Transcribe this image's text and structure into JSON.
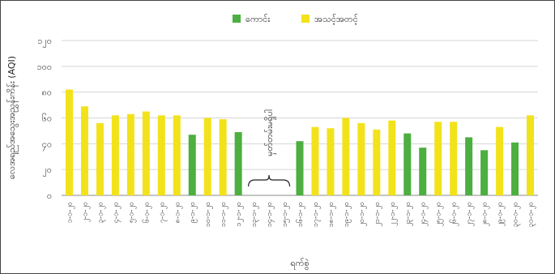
{
  "chart_data": {
    "type": "bar",
    "title": "",
    "ylabel": "လေအရည်အသွေးအညွှန်းကိန်း (AQI)",
    "xlabel": "ရက်စွဲ",
    "ylim": [
      0,
      120
    ],
    "yticks": [
      0,
      20,
      40,
      60,
      80,
      100,
      120
    ],
    "ytick_labels": [
      "၀",
      "၂၀",
      "၄၀",
      "၆၀",
      "၈၀",
      "၁၀၀",
      "၁၂၀"
    ],
    "legend_position": "top-center",
    "legend": [
      {
        "key": "good",
        "label": "ကောင်း",
        "color": "#4caf3f"
      },
      {
        "key": "moderate",
        "label": "အသင့်အတင့်",
        "color": "#f2e21b"
      }
    ],
    "annotation": "မှတ်တမ်းမရှိပါ",
    "categories": [
      "၁-၁-၂၀",
      "၂-၁-၂၀",
      "၃-၁-၂၀",
      "၄-၁-၂၀",
      "၅-၁-၂၀",
      "၆-၁-၂၀",
      "၇-၁-၂၀",
      "၈-၁-၂၀",
      "၉-၁-၂၀",
      "၁၀-၁-၂၀",
      "၁၁-၁-၂၀",
      "၁၂-၁-၂၀",
      "၁၃-၁-၂၀",
      "၁၄-၁-၂၀",
      "၁၅-၁-၂၀",
      "၁၆-၁-၂၀",
      "၁၇-၁-၂၀",
      "၁၈-၁-၂၀",
      "၁၉-၁-၂၀",
      "၂၀-၁-၂၀",
      "၂၁-၁-၂၀",
      "၂၂-၁-၂၀",
      "၂၃-၁-၂၀",
      "၂၄-၁-၂၀",
      "၂၅-၁-၂၀",
      "၂၆-၁-၂၀",
      "၂၇-၁-၂၀",
      "၂၈-၁-၂၀",
      "၂၉-၁-၂၀",
      "၃၀-၁-၂၀",
      "၃၁-၁-၂၀"
    ],
    "values": [
      82,
      69,
      56,
      62,
      63,
      65,
      62,
      62,
      47,
      60,
      59,
      49,
      null,
      null,
      null,
      42,
      53,
      52,
      60,
      56,
      51,
      58,
      48,
      37,
      57,
      57,
      45,
      35,
      53,
      41,
      62
    ],
    "statuses": [
      "moderate",
      "moderate",
      "moderate",
      "moderate",
      "moderate",
      "moderate",
      "moderate",
      "moderate",
      "good",
      "moderate",
      "moderate",
      "good",
      null,
      null,
      null,
      "good",
      "moderate",
      "moderate",
      "moderate",
      "moderate",
      "moderate",
      "moderate",
      "good",
      "good",
      "moderate",
      "moderate",
      "good",
      "good",
      "moderate",
      "good",
      "moderate"
    ]
  }
}
